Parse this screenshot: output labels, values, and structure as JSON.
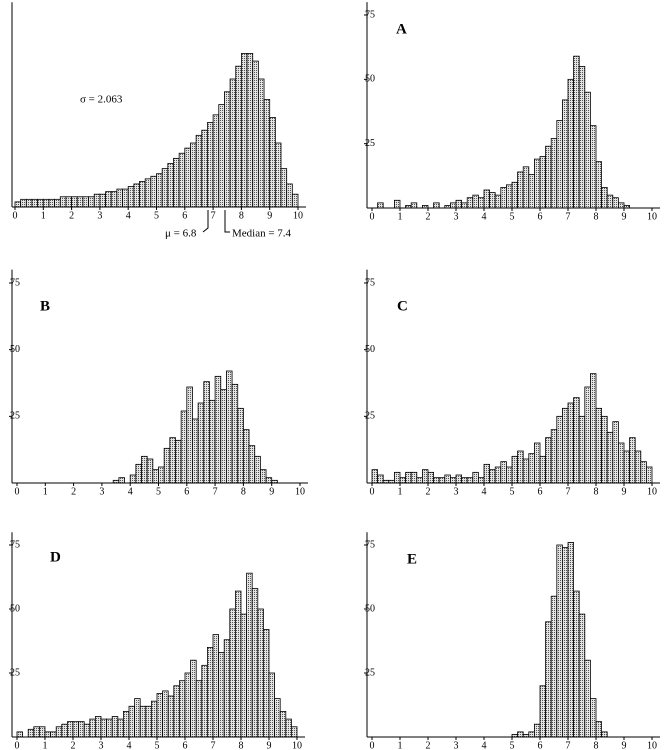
{
  "chart_data": [
    {
      "type": "histogram",
      "annotations": [
        "σ = 2.063",
        "μ = 6.8",
        "Median = 7.4"
      ],
      "bins": [
        0,
        0.2,
        0.4,
        0.6,
        0.8,
        1,
        1.2,
        1.4,
        1.6,
        1.8,
        2,
        2.2,
        2.4,
        2.6,
        2.8,
        3,
        3.2,
        3.4,
        3.6,
        3.8,
        4,
        4.2,
        4.4,
        4.6,
        4.8,
        5,
        5.2,
        5.4,
        5.6,
        5.8,
        6,
        6.2,
        6.4,
        6.6,
        6.8,
        7,
        7.2,
        7.4,
        7.6,
        7.8,
        8,
        8.2,
        8.4,
        8.6,
        8.8,
        9,
        9.2,
        9.4,
        9.6,
        9.8,
        10
      ],
      "values": [
        2,
        3,
        3,
        3,
        3,
        3,
        3,
        3,
        4,
        4,
        4,
        4,
        4,
        4,
        5,
        5,
        6,
        6,
        7,
        7,
        8,
        9,
        10,
        11,
        12,
        13,
        15,
        17,
        19,
        21,
        23,
        25,
        28,
        30,
        33,
        36,
        40,
        45,
        50,
        55,
        60,
        60,
        57,
        50,
        42,
        35,
        25,
        15,
        9,
        5
      ],
      "xlim": [
        0,
        10
      ],
      "xticks": [
        0,
        1,
        2,
        3,
        4,
        5,
        6,
        7,
        8,
        9,
        10
      ],
      "ylim": [
        0,
        80
      ],
      "color": "#b8b8b8"
    },
    {
      "type": "histogram",
      "title": "A",
      "bins": [
        0,
        0.2,
        0.4,
        0.6,
        0.8,
        1,
        1.2,
        1.4,
        1.6,
        1.8,
        2,
        2.2,
        2.4,
        2.6,
        2.8,
        3,
        3.2,
        3.4,
        3.6,
        3.8,
        4,
        4.2,
        4.4,
        4.6,
        4.8,
        5,
        5.2,
        5.4,
        5.6,
        5.8,
        6,
        6.2,
        6.4,
        6.6,
        6.8,
        7,
        7.2,
        7.4,
        7.6,
        7.8,
        8,
        8.2,
        8.4,
        8.6,
        8.8,
        9,
        9.2,
        9.4,
        9.6,
        9.8,
        10
      ],
      "values": [
        0,
        2,
        0,
        0,
        3,
        0,
        1,
        2,
        0,
        1,
        0,
        2,
        0,
        1,
        2,
        3,
        2,
        4,
        5,
        4,
        7,
        6,
        5,
        8,
        9,
        10,
        14,
        16,
        13,
        19,
        20,
        24,
        27,
        34,
        42,
        50,
        59,
        55,
        45,
        32,
        18,
        8,
        5,
        4,
        2,
        1,
        0,
        0,
        0,
        0
      ],
      "xlim": [
        0,
        10
      ],
      "xticks": [
        0,
        1,
        2,
        3,
        4,
        5,
        6,
        7,
        8,
        9,
        10
      ],
      "ylim": [
        0,
        80
      ],
      "yticks": [
        25,
        50,
        75
      ],
      "color": "#b8b8b8"
    },
    {
      "type": "histogram",
      "title": "B",
      "bins": [
        0,
        0.2,
        0.4,
        0.6,
        0.8,
        1,
        1.2,
        1.4,
        1.6,
        1.8,
        2,
        2.2,
        2.4,
        2.6,
        2.8,
        3,
        3.2,
        3.4,
        3.6,
        3.8,
        4,
        4.2,
        4.4,
        4.6,
        4.8,
        5,
        5.2,
        5.4,
        5.6,
        5.8,
        6,
        6.2,
        6.4,
        6.6,
        6.8,
        7,
        7.2,
        7.4,
        7.6,
        7.8,
        8,
        8.2,
        8.4,
        8.6,
        8.8,
        9,
        9.2,
        9.4,
        9.6,
        9.8,
        10
      ],
      "values": [
        0,
        0,
        0,
        0,
        0,
        0,
        0,
        0,
        0,
        0,
        0,
        0,
        0,
        0,
        0,
        0,
        0,
        1,
        2,
        0,
        3,
        7,
        10,
        9,
        5,
        6,
        13,
        17,
        16,
        27,
        36,
        24,
        30,
        38,
        31,
        40,
        35,
        42,
        37,
        28,
        20,
        14,
        10,
        5,
        2,
        1,
        0,
        0,
        0,
        0
      ],
      "xlim": [
        0,
        10
      ],
      "xticks": [
        0,
        1,
        2,
        3,
        4,
        5,
        6,
        7,
        8,
        9,
        10
      ],
      "ylim": [
        0,
        80
      ],
      "yticks": [
        25,
        50,
        75
      ],
      "color": "#b8b8b8"
    },
    {
      "type": "histogram",
      "title": "C",
      "bins": [
        0,
        0.2,
        0.4,
        0.6,
        0.8,
        1,
        1.2,
        1.4,
        1.6,
        1.8,
        2,
        2.2,
        2.4,
        2.6,
        2.8,
        3,
        3.2,
        3.4,
        3.6,
        3.8,
        4,
        4.2,
        4.4,
        4.6,
        4.8,
        5,
        5.2,
        5.4,
        5.6,
        5.8,
        6,
        6.2,
        6.4,
        6.6,
        6.8,
        7,
        7.2,
        7.4,
        7.6,
        7.8,
        8,
        8.2,
        8.4,
        8.6,
        8.8,
        9,
        9.2,
        9.4,
        9.6,
        9.8,
        10
      ],
      "values": [
        5,
        3,
        1,
        1,
        4,
        2,
        4,
        4,
        2,
        5,
        4,
        2,
        2,
        3,
        2,
        3,
        2,
        2,
        4,
        2,
        7,
        5,
        6,
        8,
        6,
        10,
        12,
        9,
        11,
        15,
        10,
        17,
        20,
        25,
        28,
        30,
        32,
        25,
        36,
        41,
        28,
        25,
        19,
        23,
        15,
        12,
        17,
        12,
        8,
        6
      ],
      "xlim": [
        0,
        10
      ],
      "xticks": [
        0,
        1,
        2,
        3,
        4,
        5,
        6,
        7,
        8,
        9,
        10
      ],
      "ylim": [
        0,
        80
      ],
      "yticks": [
        25,
        50,
        75
      ],
      "color": "#b8b8b8"
    },
    {
      "type": "histogram",
      "title": "D",
      "bins": [
        0,
        0.2,
        0.4,
        0.6,
        0.8,
        1,
        1.2,
        1.4,
        1.6,
        1.8,
        2,
        2.2,
        2.4,
        2.6,
        2.8,
        3,
        3.2,
        3.4,
        3.6,
        3.8,
        4,
        4.2,
        4.4,
        4.6,
        4.8,
        5,
        5.2,
        5.4,
        5.6,
        5.8,
        6,
        6.2,
        6.4,
        6.6,
        6.8,
        7,
        7.2,
        7.4,
        7.6,
        7.8,
        8,
        8.2,
        8.4,
        8.6,
        8.8,
        9,
        9.2,
        9.4,
        9.6,
        9.8,
        10
      ],
      "values": [
        2,
        0,
        3,
        4,
        4,
        2,
        2,
        4,
        5,
        6,
        6,
        6,
        5,
        7,
        8,
        7,
        7,
        8,
        7,
        10,
        12,
        15,
        12,
        12,
        14,
        17,
        18,
        16,
        20,
        22,
        25,
        30,
        22,
        28,
        35,
        40,
        33,
        38,
        50,
        57,
        48,
        64,
        58,
        50,
        42,
        25,
        15,
        10,
        7,
        4
      ],
      "xlim": [
        0,
        10
      ],
      "xticks": [
        0,
        1,
        2,
        3,
        4,
        5,
        6,
        7,
        8,
        9,
        10
      ],
      "ylim": [
        0,
        80
      ],
      "yticks": [
        25,
        50,
        75
      ],
      "color": "#b8b8b8"
    },
    {
      "type": "histogram",
      "title": "E",
      "bins": [
        0,
        0.2,
        0.4,
        0.6,
        0.8,
        1,
        1.2,
        1.4,
        1.6,
        1.8,
        2,
        2.2,
        2.4,
        2.6,
        2.8,
        3,
        3.2,
        3.4,
        3.6,
        3.8,
        4,
        4.2,
        4.4,
        4.6,
        4.8,
        5,
        5.2,
        5.4,
        5.6,
        5.8,
        6,
        6.2,
        6.4,
        6.6,
        6.8,
        7,
        7.2,
        7.4,
        7.6,
        7.8,
        8,
        8.2,
        8.4,
        8.6,
        8.8,
        9,
        9.2,
        9.4,
        9.6,
        9.8,
        10
      ],
      "values": [
        0,
        0,
        0,
        0,
        0,
        0,
        0,
        0,
        0,
        0,
        0,
        0,
        0,
        0,
        0,
        0,
        0,
        0,
        0,
        0,
        0,
        0,
        0,
        0,
        0,
        1,
        2,
        1,
        2,
        5,
        20,
        45,
        55,
        75,
        74,
        76,
        57,
        48,
        30,
        15,
        6,
        2,
        0,
        0,
        0,
        0,
        0,
        0,
        0,
        0
      ],
      "xlim": [
        0,
        10
      ],
      "xticks": [
        0,
        1,
        2,
        3,
        4,
        5,
        6,
        7,
        8,
        9,
        10
      ],
      "ylim": [
        0,
        80
      ],
      "yticks": [
        25,
        50,
        75
      ],
      "color": "#b8b8b8"
    }
  ]
}
